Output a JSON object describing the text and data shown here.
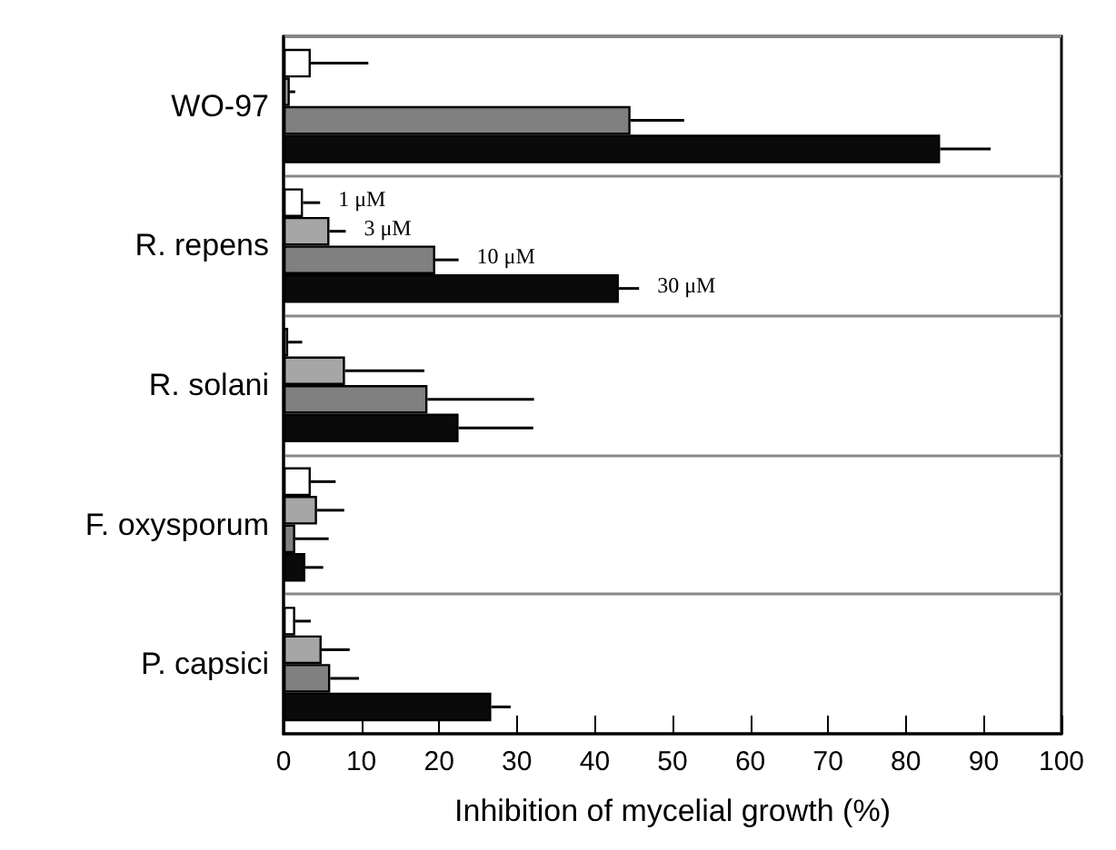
{
  "chart_data": {
    "type": "bar",
    "orientation": "horizontal",
    "categories": [
      "WO-97",
      "R. repens",
      "R. solani",
      "F. oxysporum",
      "P. capsici"
    ],
    "series": [
      {
        "name": "1 μM",
        "color": "#ffffff",
        "values": [
          3.5,
          2.5,
          0.6,
          3.5,
          1.5
        ],
        "errors": [
          [
            3.5,
            10.9
          ],
          [
            2.5,
            4.7
          ],
          [
            0.6,
            2.4
          ],
          [
            3.5,
            6.7
          ],
          [
            1.5,
            3.5
          ]
        ]
      },
      {
        "name": "3 μM",
        "color": "#a6a6a6",
        "values": [
          0.8,
          5.9,
          7.9,
          4.3,
          4.9
        ],
        "errors": [
          [
            0.8,
            1.5
          ],
          [
            5.9,
            8
          ],
          [
            7.9,
            18.1
          ],
          [
            4.3,
            7.8
          ],
          [
            4.9,
            8.5
          ]
        ]
      },
      {
        "name": "10 μM",
        "color": "#808080",
        "values": [
          44.6,
          19.5,
          18.5,
          1.5,
          6
        ],
        "errors": [
          [
            44.6,
            51.5
          ],
          [
            19.5,
            22.5
          ],
          [
            18.5,
            32.2
          ],
          [
            1.5,
            5.8
          ],
          [
            6,
            9.7
          ]
        ]
      },
      {
        "name": "30 μM",
        "color": "#0a0a0a",
        "values": [
          84.4,
          43.1,
          22.5,
          2.8,
          26.7
        ],
        "errors": [
          [
            84.4,
            90.9
          ],
          [
            43.1,
            45.7
          ],
          [
            22.5,
            32.1
          ],
          [
            2.8,
            5.1
          ],
          [
            26.7,
            29.2
          ]
        ]
      }
    ],
    "xlabel": "Inhibition of mycelial growth (%)",
    "xlim": [
      0,
      100
    ],
    "xticks": [
      0,
      10,
      20,
      30,
      40,
      50,
      60,
      70,
      80,
      90,
      100
    ],
    "grid": "y",
    "legend": false
  }
}
